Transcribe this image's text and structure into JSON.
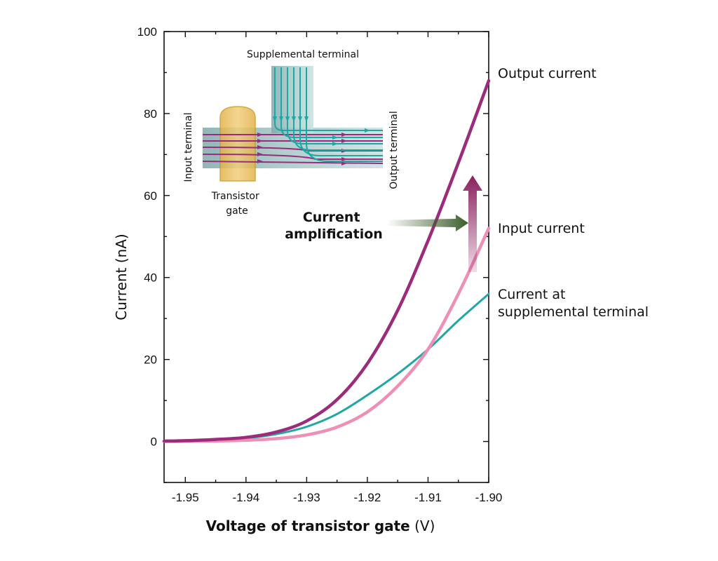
{
  "chart_data": {
    "type": "line",
    "xlabel_bold": "Voltage of transistor gate",
    "xlabel_unit": " (V)",
    "ylabel": "Current (nA)",
    "xlim": [
      -1.9535,
      -1.9
    ],
    "ylim": [
      -10,
      100
    ],
    "xticks": [
      -1.95,
      -1.94,
      -1.93,
      -1.92,
      -1.91,
      -1.9
    ],
    "xtick_labels": [
      "-1.95",
      "-1.94",
      "-1.93",
      "-1.92",
      "-1.91",
      "-1.90"
    ],
    "yticks": [
      0,
      20,
      40,
      60,
      80,
      100
    ],
    "ytick_labels": [
      "0",
      "20",
      "40",
      "60",
      "80",
      "100"
    ],
    "grid": false,
    "series": [
      {
        "name": "Output current",
        "color": "#9c2b7c",
        "x": [
          -1.9535,
          -1.95,
          -1.945,
          -1.94,
          -1.935,
          -1.93,
          -1.925,
          -1.92,
          -1.915,
          -1.91,
          -1.905,
          -1.9
        ],
        "values": [
          0.1,
          0.2,
          0.5,
          1.0,
          2.3,
          5.0,
          10.2,
          19.0,
          32.0,
          49.0,
          68.0,
          88.0
        ]
      },
      {
        "name": "Input current",
        "color": "#ee8fb6",
        "x": [
          -1.9535,
          -1.95,
          -1.945,
          -1.94,
          -1.935,
          -1.93,
          -1.925,
          -1.92,
          -1.915,
          -1.91,
          -1.905,
          -1.9
        ],
        "values": [
          0.0,
          0.05,
          0.1,
          0.3,
          0.7,
          1.6,
          3.5,
          7.2,
          13.5,
          22.5,
          36.0,
          52.0
        ]
      },
      {
        "name": "Current at supplemental terminal",
        "name_lines": [
          "Current at",
          "supplemental terminal"
        ],
        "color": "#1fa7a3",
        "x": [
          -1.9535,
          -1.95,
          -1.945,
          -1.94,
          -1.935,
          -1.93,
          -1.925,
          -1.92,
          -1.915,
          -1.91,
          -1.905,
          -1.9
        ],
        "values": [
          0.1,
          0.2,
          0.4,
          0.8,
          1.8,
          3.6,
          6.7,
          11.3,
          16.5,
          22.5,
          29.5,
          36.0
        ]
      }
    ],
    "annotation_lines": [
      "Current",
      "amplification"
    ]
  },
  "inset": {
    "supplemental_label": "Supplemental terminal",
    "input_label": "Input terminal",
    "output_label": "Output terminal",
    "gate_label_lines": [
      "Transistor",
      "gate"
    ],
    "colors": {
      "channel": "#9fc3c3",
      "gate": "#e8bb55",
      "input_lines": "#9c2b7c",
      "supplemental_lines": "#1fa7a3"
    }
  },
  "colors": {
    "callout_arrow": "#3b5d2a",
    "amplification_arrow": "#8a1f5e"
  }
}
